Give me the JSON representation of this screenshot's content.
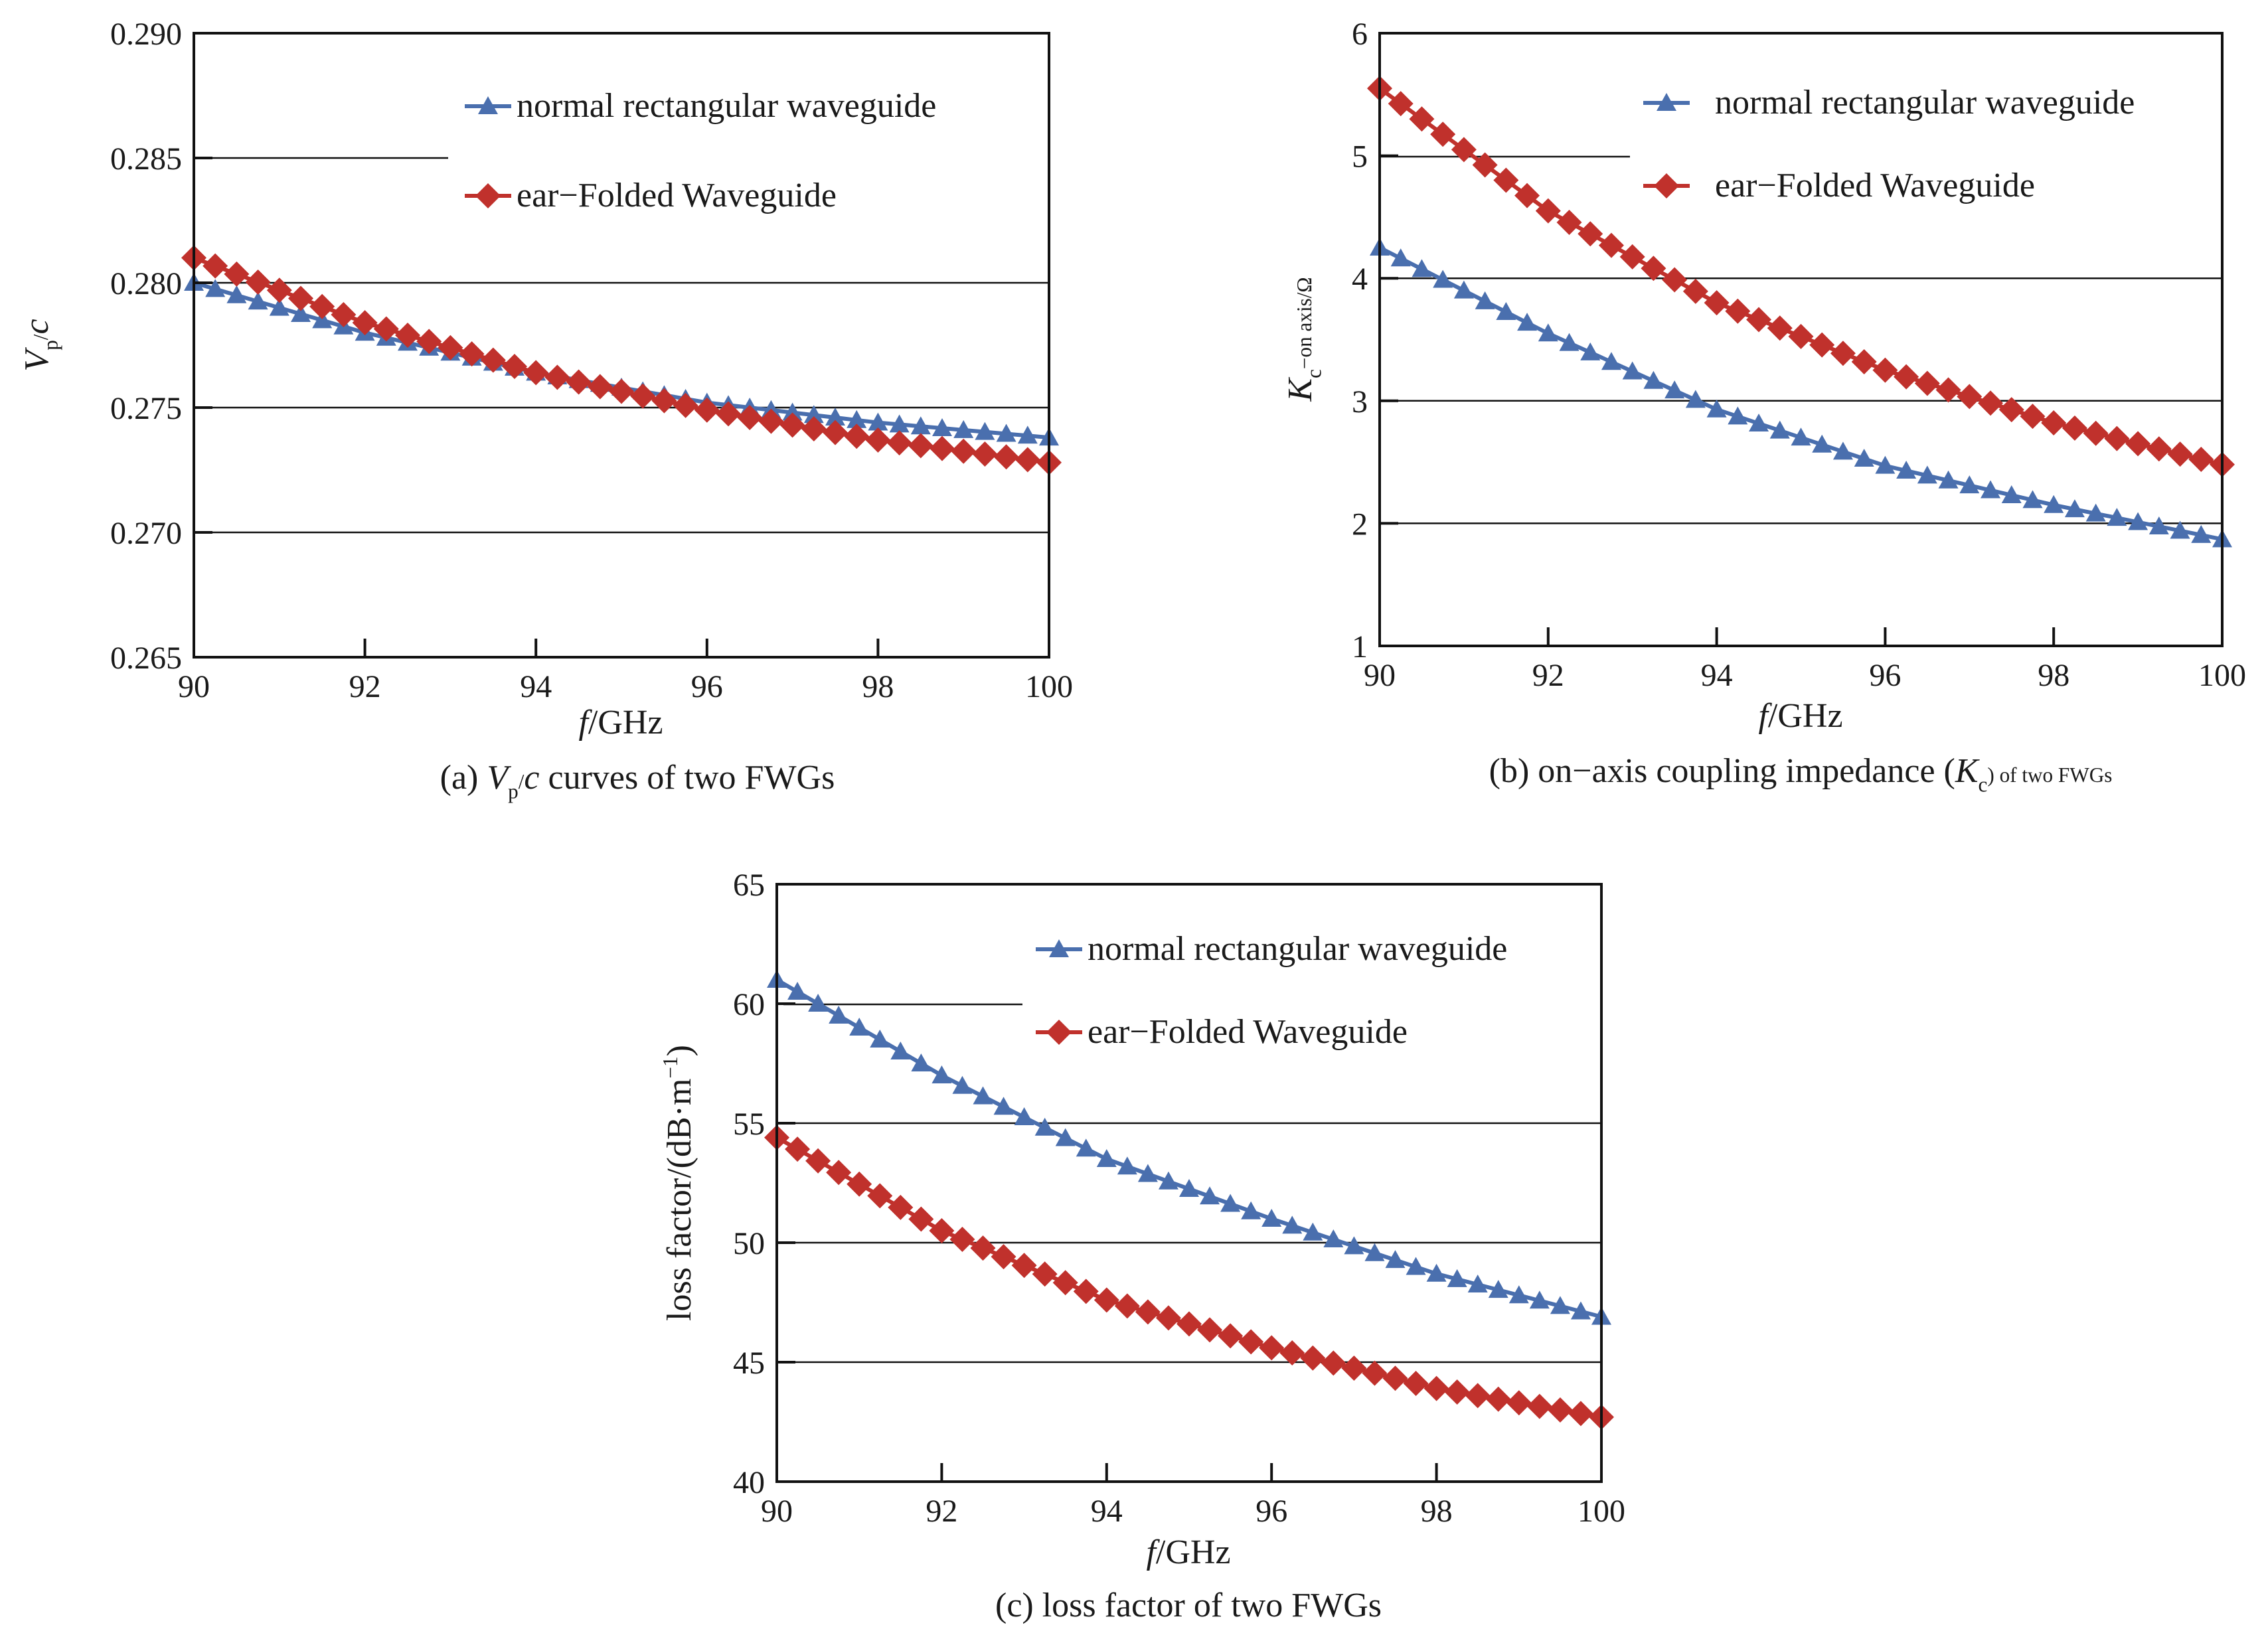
{
  "colors": {
    "normal": "#4a6fae",
    "ear": "#c0312c",
    "axis": "#111111",
    "grid": "#111111"
  },
  "chart_data": [
    {
      "id": "a",
      "type": "line",
      "caption_parts": [
        "(a) ",
        "V",
        "p",
        "/",
        "c",
        " curves of two FWGs"
      ],
      "xlabel_parts": [
        "f",
        "/GHz"
      ],
      "ylabel_parts": [
        "V",
        "p",
        "/",
        "c"
      ],
      "xlim": [
        90,
        100
      ],
      "ylim": [
        0.265,
        0.29
      ],
      "xticks": [
        "90",
        "92",
        "94",
        "96",
        "98",
        "100"
      ],
      "yticks": [
        "0.265",
        "0.270",
        "0.275",
        "0.280",
        "0.285",
        "0.290"
      ],
      "grid_y": [
        0.27,
        0.275,
        0.28
      ],
      "legend_placement": "top-right",
      "series": [
        {
          "name": "normal rectangular waveguide",
          "marker": "triangle",
          "color": "#4a6fae",
          "x": [
            90,
            92,
            94,
            96,
            98,
            100
          ],
          "y": [
            0.28,
            0.278,
            0.2764,
            0.2752,
            0.2744,
            0.2738
          ]
        },
        {
          "name": "ear−Folded Waveguide",
          "marker": "diamond",
          "color": "#c0312c",
          "x": [
            90,
            92,
            94,
            96,
            98,
            100
          ],
          "y": [
            0.281,
            0.2784,
            0.2764,
            0.2749,
            0.2737,
            0.2728
          ]
        }
      ]
    },
    {
      "id": "b",
      "type": "line",
      "caption_parts": [
        "(b) on−axis coupling impedance (",
        "K",
        "c",
        ") of two FWGs"
      ],
      "xlabel_parts": [
        "f",
        "/GHz"
      ],
      "ylabel_parts": [
        "K",
        "c",
        "−on axis/Ω"
      ],
      "xlim": [
        90,
        100
      ],
      "ylim": [
        1,
        6
      ],
      "xticks": [
        "90",
        "92",
        "94",
        "96",
        "98",
        "100"
      ],
      "yticks": [
        "1",
        "2",
        "3",
        "4",
        "5",
        "6"
      ],
      "grid_y": [
        2,
        3,
        4
      ],
      "legend_placement": "top-right",
      "series": [
        {
          "name": "normal rectangular waveguide",
          "marker": "triangle",
          "color": "#4a6fae",
          "x": [
            90,
            92,
            94,
            96,
            98,
            100
          ],
          "y": [
            4.25,
            3.55,
            2.93,
            2.47,
            2.15,
            1.87
          ]
        },
        {
          "name": "ear−Folded Waveguide",
          "marker": "diamond",
          "color": "#c0312c",
          "x": [
            90,
            92,
            94,
            96,
            98,
            100
          ],
          "y": [
            5.55,
            4.55,
            3.8,
            3.25,
            2.82,
            2.48
          ]
        }
      ]
    },
    {
      "id": "c",
      "type": "line",
      "caption_parts": [
        "(c) loss factor of two FWGs"
      ],
      "xlabel_parts": [
        "f",
        "/GHz"
      ],
      "ylabel_parts": [
        "loss factor/(dB·m",
        "−1",
        ")"
      ],
      "xlim": [
        90,
        100
      ],
      "ylim": [
        40,
        65
      ],
      "xticks": [
        "90",
        "92",
        "94",
        "96",
        "98",
        "100"
      ],
      "yticks": [
        "40",
        "45",
        "50",
        "55",
        "60",
        "65"
      ],
      "grid_y": [
        45,
        50,
        55
      ],
      "legend_placement": "top-right",
      "series": [
        {
          "name": "normal rectangular waveguide",
          "marker": "triangle",
          "color": "#4a6fae",
          "x": [
            90,
            92,
            94,
            96,
            98,
            100
          ],
          "y": [
            61.0,
            57.0,
            53.5,
            51.0,
            48.7,
            46.9
          ]
        },
        {
          "name": "ear−Folded Waveguide",
          "marker": "diamond",
          "color": "#c0312c",
          "x": [
            90,
            92,
            94,
            96,
            98,
            100
          ],
          "y": [
            54.4,
            50.5,
            47.6,
            45.6,
            43.9,
            42.7
          ]
        }
      ]
    }
  ]
}
